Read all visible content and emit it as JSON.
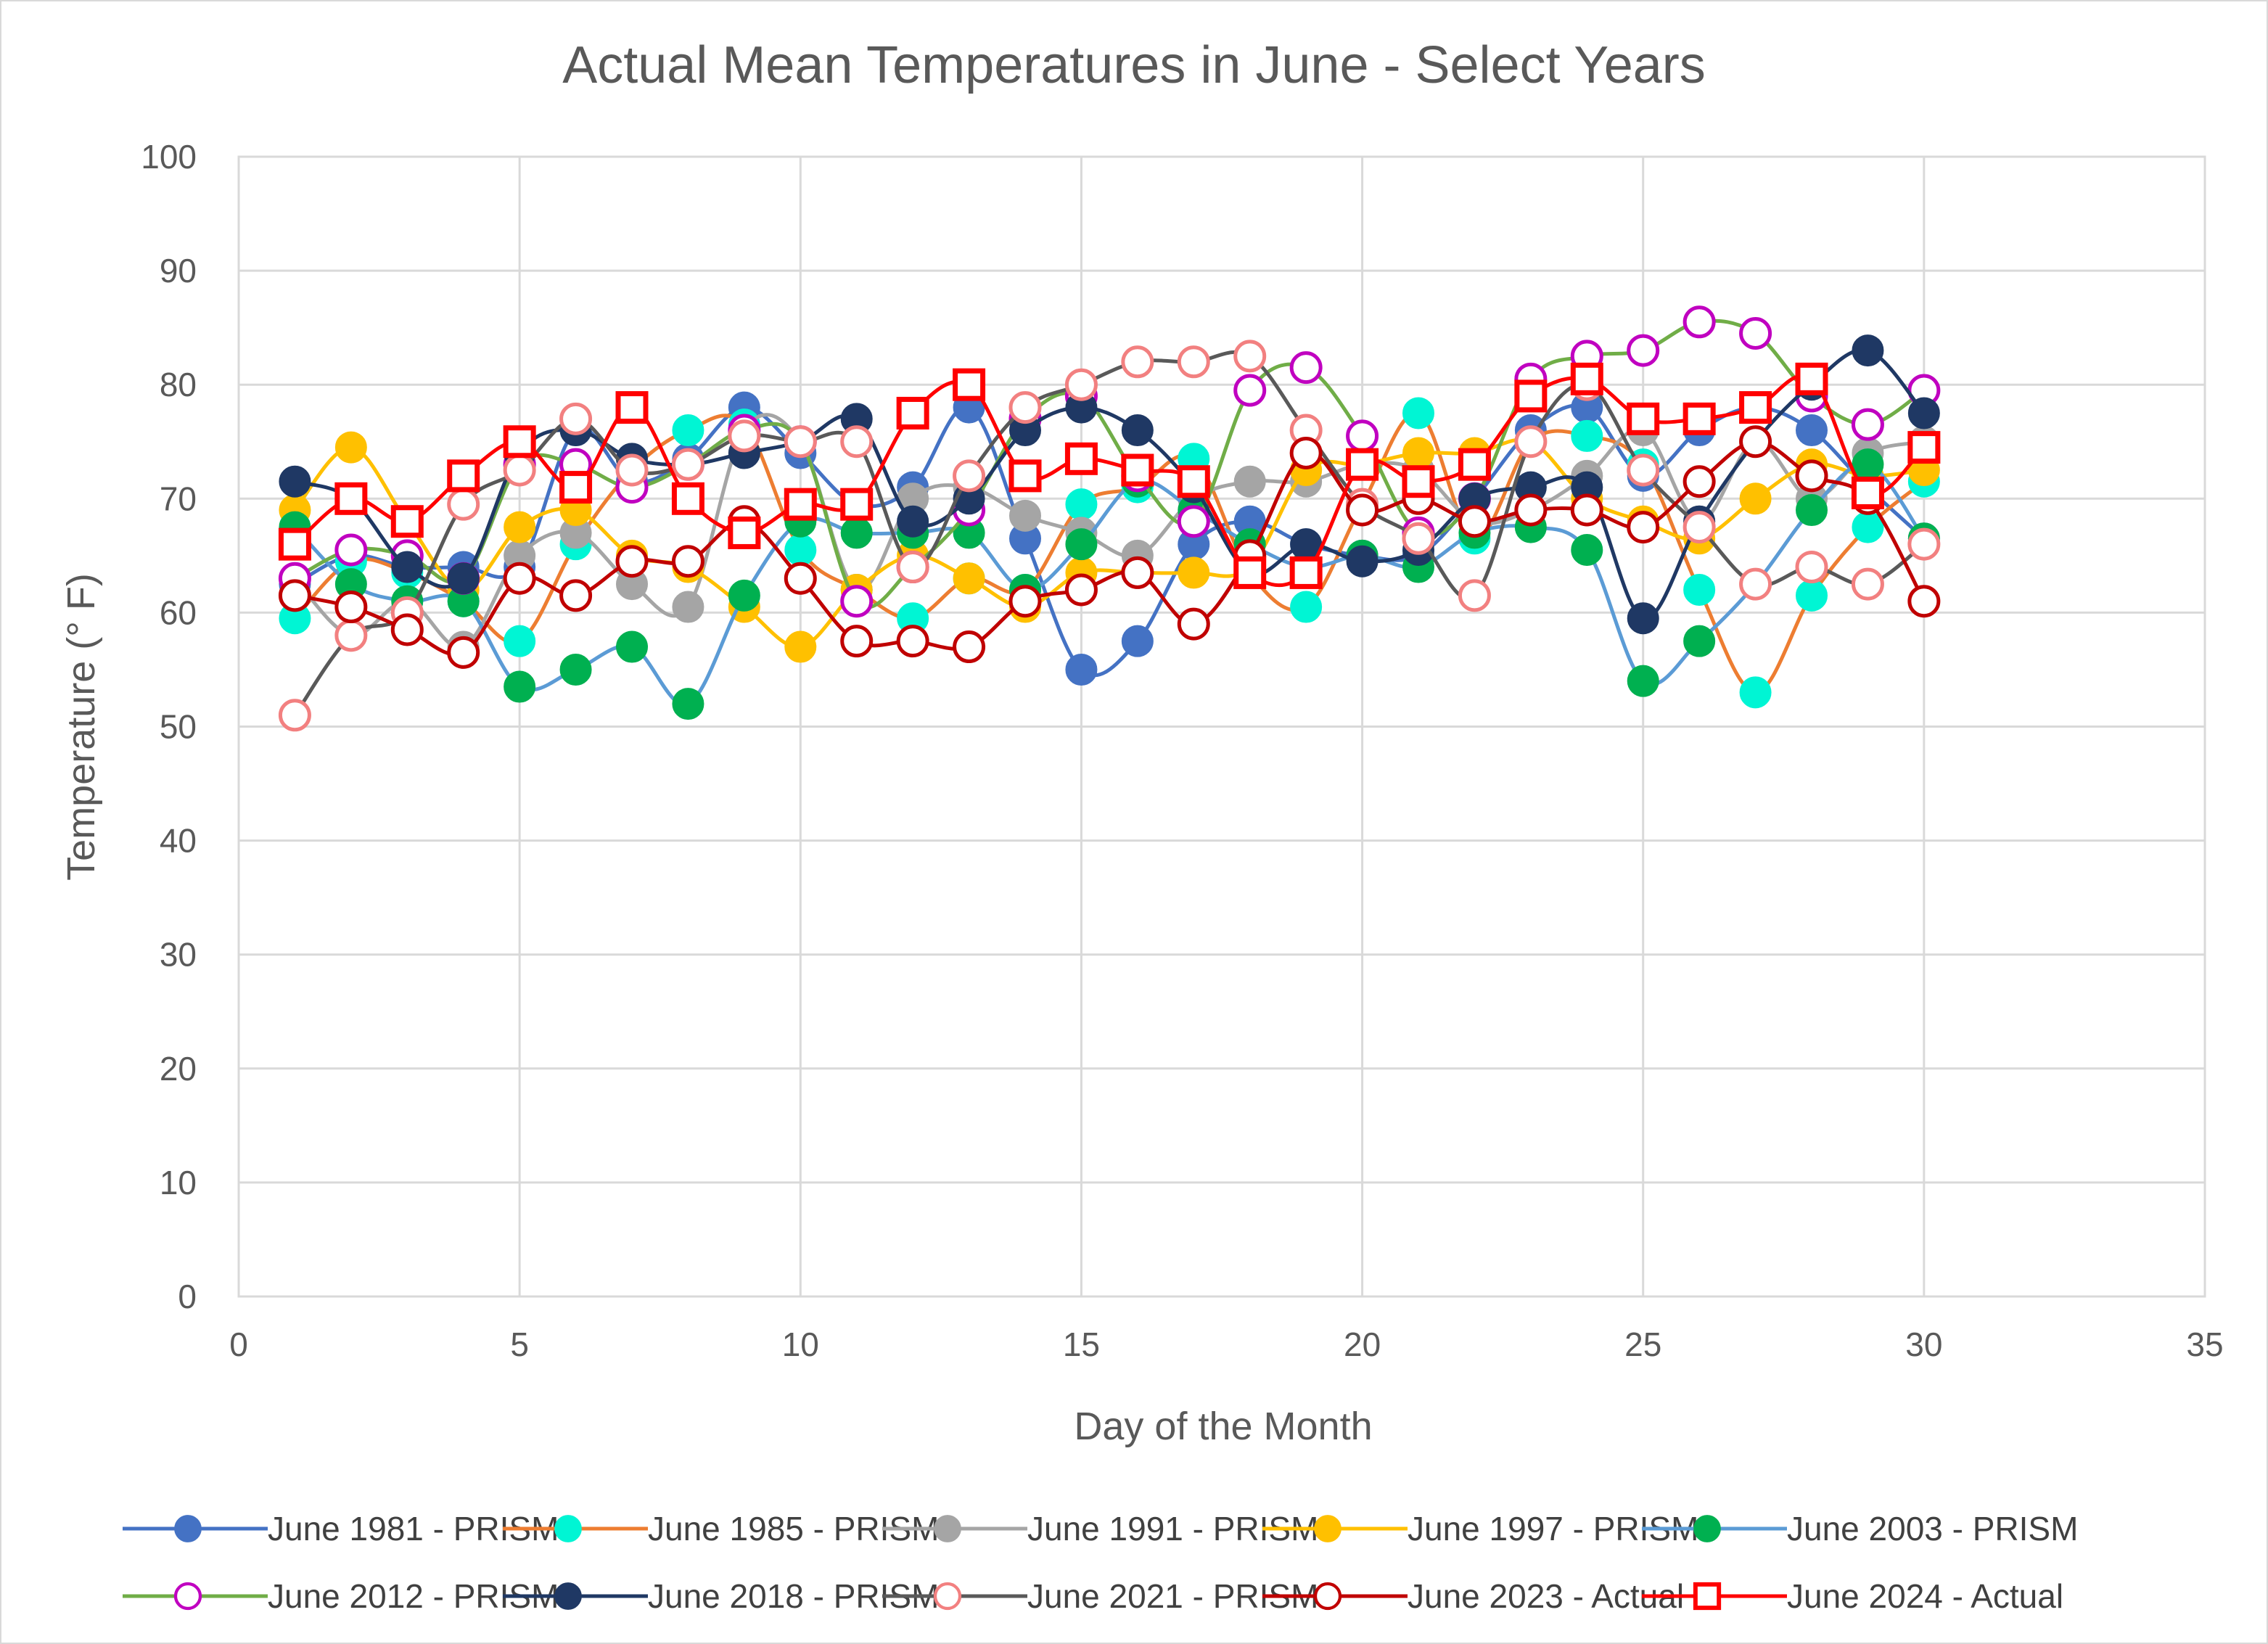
{
  "chart_data": {
    "type": "line",
    "title": "Actual Mean Temperatures in June - Select Years",
    "xlabel": "Day of the Month",
    "ylabel": "Temperature (° F)",
    "xlim": [
      0,
      35
    ],
    "ylim": [
      0,
      100
    ],
    "x_ticks": [
      0,
      5,
      10,
      15,
      20,
      25,
      30,
      35
    ],
    "y_ticks": [
      0,
      10,
      20,
      30,
      40,
      50,
      60,
      70,
      80,
      90,
      100
    ],
    "grid": true,
    "legend_position": "bottom",
    "x": [
      1,
      2,
      3,
      4,
      5,
      6,
      7,
      8,
      9,
      10,
      11,
      12,
      13,
      14,
      15,
      16,
      17,
      18,
      19,
      20,
      21,
      22,
      23,
      24,
      25,
      26,
      27,
      28,
      29,
      30
    ],
    "series": [
      {
        "name": "June 1981 - PRISM",
        "color": "#4472C4",
        "marker": "filled-circle",
        "values": [
          62.5,
          65,
          64,
          64,
          64,
          76,
          71.5,
          73.5,
          78,
          74,
          69.5,
          71,
          78,
          66.5,
          55,
          57.5,
          66,
          68,
          66,
          65,
          65,
          70,
          76,
          78,
          72,
          76,
          78,
          76,
          71,
          66.5
        ]
      },
      {
        "name": "June 1985 - PRISM",
        "color": "#00F5D4",
        "line_color": "#ED7D31",
        "marker": "filled-circle",
        "values": [
          59.5,
          64.5,
          63.5,
          61,
          57.5,
          66,
          72.5,
          76,
          76.5,
          65.5,
          62,
          59.5,
          63,
          62,
          69.5,
          71,
          73.5,
          63.5,
          60.5,
          69.5,
          77.5,
          66.5,
          75,
          75.5,
          73,
          62,
          53,
          61.5,
          67.5,
          71.5
        ]
      },
      {
        "name": "June 1991 - PRISM",
        "color": "#A5A5A5",
        "marker": "filled-circle",
        "values": [
          63,
          58,
          61,
          57,
          65,
          67,
          62.5,
          60.5,
          76,
          75,
          62,
          70,
          71,
          68.5,
          67,
          65,
          70,
          71.5,
          71.5,
          73,
          72.5,
          68,
          69,
          72,
          76,
          68,
          75,
          70,
          74,
          75
        ]
      },
      {
        "name": "June 1997 - PRISM",
        "color": "#FFC000",
        "marker": "filled-circle",
        "values": [
          69,
          74.5,
          68,
          62,
          67.5,
          69,
          65,
          64,
          60.5,
          57,
          62,
          65,
          63,
          60.5,
          63.5,
          63.5,
          63.5,
          64,
          72.5,
          73,
          74,
          74,
          75,
          70,
          68,
          66.5,
          70,
          73,
          72,
          72.5
        ]
      },
      {
        "name": "June 2003 - PRISM",
        "color": "#00B050",
        "line_color": "#5B9BD5",
        "marker": "filled-circle",
        "values": [
          67.5,
          62.5,
          61,
          61,
          53.5,
          55,
          57,
          52,
          61.5,
          68,
          67,
          67,
          67,
          62,
          66,
          71.5,
          69,
          66,
          64,
          65,
          64,
          67,
          67.5,
          65.5,
          54,
          57.5,
          62.5,
          69,
          73,
          66.5
        ]
      },
      {
        "name": "June 2012 - PRISM",
        "color": "#C000C0",
        "line_color": "#70AD47",
        "marker": "hollow-circle",
        "values": [
          63,
          65.5,
          65,
          63,
          73,
          73,
          71,
          73,
          76,
          75,
          61,
          64,
          69,
          77,
          79,
          72,
          68,
          79.5,
          81.5,
          75.5,
          67,
          70,
          80.5,
          82.5,
          83,
          85.5,
          84.5,
          79,
          76.5,
          79.5
        ]
      },
      {
        "name": "June 2018 - PRISM",
        "color": "#1F3864",
        "marker": "filled-circle",
        "values": [
          71.5,
          70,
          64,
          63,
          74,
          76,
          73.5,
          73,
          74,
          75,
          77,
          68,
          70,
          76,
          78,
          76,
          71,
          63.5,
          66,
          64.5,
          65.5,
          70,
          71,
          71,
          59.5,
          68,
          75,
          80,
          83,
          77.5
        ]
      },
      {
        "name": "June 2021 - PRISM",
        "color": "#F28080",
        "line_color": "#595959",
        "marker": "hollow-circle",
        "values": [
          51,
          58,
          60,
          69.5,
          72.5,
          77,
          72.5,
          73,
          75.5,
          75,
          75,
          64,
          72,
          78,
          80,
          82,
          82,
          82.5,
          76,
          69.5,
          66.5,
          61.5,
          75,
          80,
          72.5,
          67.5,
          62.5,
          64,
          62.5,
          66
        ]
      },
      {
        "name": "June 2023 - Actual",
        "color": "#C00000",
        "marker": "hollow-circle",
        "values": [
          61.5,
          60.5,
          58.5,
          56.5,
          63,
          61.5,
          64.5,
          64.5,
          68,
          63,
          57.5,
          57.5,
          57,
          61,
          62,
          63.5,
          59,
          65,
          74,
          69,
          70,
          68,
          69,
          69,
          67.5,
          71.5,
          75,
          72,
          70,
          61
        ]
      },
      {
        "name": "June 2024 - Actual",
        "color": "#FF0000",
        "marker": "hollow-square",
        "values": [
          66,
          70,
          68,
          72,
          75,
          71,
          78,
          70,
          67,
          69.5,
          69.5,
          77.5,
          80,
          72,
          73.5,
          72.5,
          71.5,
          63.5,
          63.5,
          73,
          71.5,
          73,
          79,
          80.5,
          77,
          77,
          78,
          80.5,
          70.5,
          74.5
        ]
      }
    ]
  }
}
